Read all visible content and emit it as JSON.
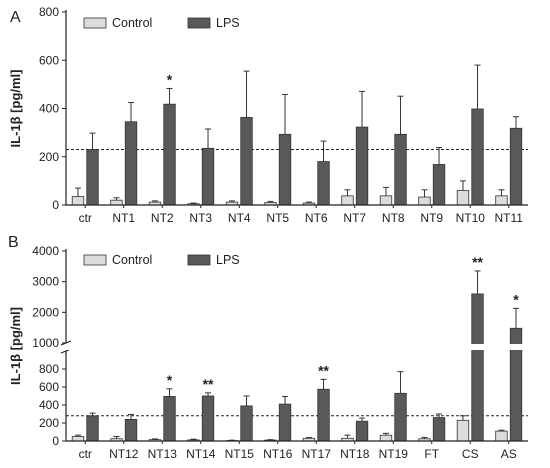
{
  "chart_data": [
    {
      "panel_label": "A",
      "type": "bar",
      "ylabel": "IL-1β [pg/ml]",
      "ylim": [
        0,
        800
      ],
      "yticks": [
        0,
        200,
        400,
        600,
        800
      ],
      "reference_line": 230,
      "categories": [
        "ctr",
        "NT1",
        "NT2",
        "NT3",
        "NT4",
        "NT5",
        "NT6",
        "NT7",
        "NT8",
        "NT9",
        "NT10",
        "NT11"
      ],
      "series": [
        {
          "name": "Control",
          "color": "#dcdcdc",
          "values": [
            35,
            20,
            12,
            5,
            12,
            10,
            8,
            38,
            38,
            33,
            60,
            38
          ],
          "errors": [
            35,
            10,
            5,
            3,
            5,
            5,
            4,
            25,
            35,
            30,
            40,
            25
          ]
        },
        {
          "name": "LPS",
          "color": "#595959",
          "values": [
            230,
            345,
            418,
            235,
            363,
            293,
            180,
            323,
            293,
            168,
            398,
            318
          ],
          "errors": [
            68,
            80,
            65,
            80,
            192,
            165,
            85,
            148,
            158,
            70,
            182,
            48
          ]
        }
      ],
      "significance": [
        {
          "category": "NT2",
          "text": "*"
        }
      ],
      "legend": "top-left"
    },
    {
      "panel_label": "B",
      "type": "bar",
      "ylabel": "IL-1β [pg/ml]",
      "ylim": [
        0,
        4000
      ],
      "axis_break": [
        1000,
        1000
      ],
      "yticks_lower": [
        0,
        200,
        400,
        600,
        800,
        1000
      ],
      "yticks_upper": [
        1000,
        2000,
        3000,
        4000
      ],
      "reference_line": 280,
      "categories": [
        "ctr",
        "NT12",
        "NT13",
        "NT14",
        "NT15",
        "NT16",
        "NT17",
        "NT18",
        "NT19",
        "FT",
        "CS",
        "AS"
      ],
      "series": [
        {
          "name": "Control",
          "color": "#dcdcdc",
          "values": [
            50,
            25,
            15,
            12,
            5,
            10,
            30,
            30,
            65,
            25,
            230,
            110
          ],
          "errors": [
            15,
            25,
            8,
            8,
            4,
            5,
            8,
            35,
            20,
            15,
            50,
            10
          ]
        },
        {
          "name": "LPS",
          "color": "#595959",
          "values": [
            280,
            240,
            495,
            500,
            390,
            410,
            575,
            220,
            530,
            260,
            2600,
            1480
          ],
          "errors": [
            30,
            55,
            85,
            35,
            110,
            85,
            110,
            35,
            240,
            40,
            750,
            650
          ]
        }
      ],
      "significance": [
        {
          "category": "NT13",
          "text": "*"
        },
        {
          "category": "NT14",
          "text": "**"
        },
        {
          "category": "NT17",
          "text": "**"
        },
        {
          "category": "CS",
          "text": "**"
        },
        {
          "category": "AS",
          "text": "*"
        }
      ],
      "legend": "top-left"
    }
  ]
}
